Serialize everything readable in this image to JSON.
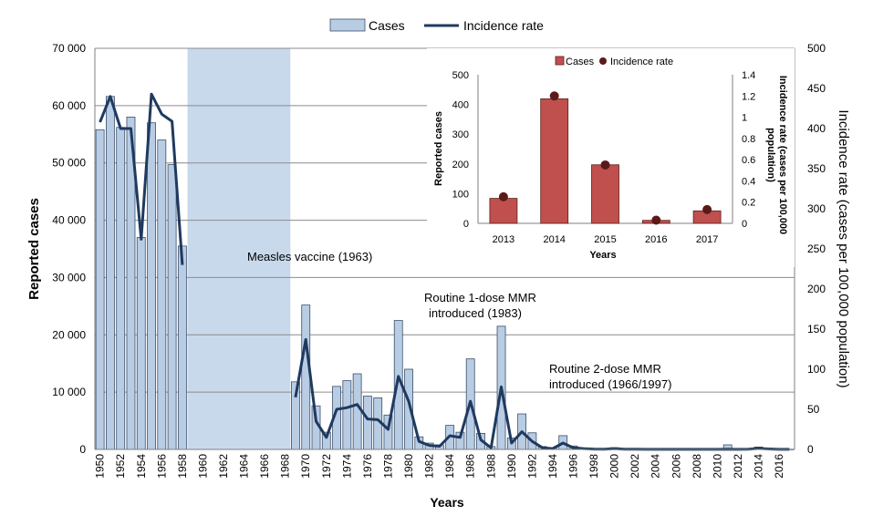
{
  "chart_data": [
    {
      "type": "bar+line",
      "title": "",
      "legend": {
        "position": "top-center",
        "items": [
          "Cases",
          "Incidence rate"
        ]
      },
      "xlabel": "Years",
      "ylabel": "Reported cases",
      "y2label": "Incidence rate (cases per 100,000 population)",
      "ylim": [
        0,
        70000
      ],
      "y2lim": [
        0,
        500
      ],
      "yticks": [
        "0",
        "10 000",
        "20 000",
        "30 000",
        "40 000",
        "50 000",
        "60 000",
        "70 000"
      ],
      "y2ticks": [
        "0",
        "50",
        "100",
        "150",
        "200",
        "250",
        "300",
        "350",
        "400",
        "450",
        "500"
      ],
      "xtick_labels": [
        "1950",
        "1952",
        "1954",
        "1956",
        "1958",
        "1960",
        "1962",
        "1964",
        "1966",
        "1968",
        "1970",
        "1972",
        "1974",
        "1976",
        "1978",
        "1980",
        "1982",
        "1984",
        "1986",
        "1988",
        "1990",
        "1992",
        "1994",
        "1996",
        "1998",
        "2000",
        "2002",
        "2004",
        "2006",
        "2008",
        "2010",
        "2012",
        "2014",
        "2016"
      ],
      "shaded_range": [
        1959,
        1969
      ],
      "annotations": [
        "Measles vaccine (1963)",
        "Routine 1-dose MMR",
        "introduced (1983)",
        "Routine 2-dose MMR",
        "introduced (1966/1997)"
      ],
      "years": [
        1950,
        1951,
        1952,
        1953,
        1954,
        1955,
        1956,
        1957,
        1958,
        1969,
        1970,
        1971,
        1972,
        1973,
        1974,
        1975,
        1976,
        1977,
        1978,
        1979,
        1980,
        1981,
        1982,
        1983,
        1984,
        1985,
        1986,
        1987,
        1988,
        1989,
        1990,
        1991,
        1992,
        1993,
        1994,
        1995,
        1996,
        1997,
        1998,
        1999,
        2000,
        2001,
        2002,
        2003,
        2004,
        2005,
        2006,
        2007,
        2008,
        2009,
        2010,
        2011,
        2012,
        2013,
        2014,
        2015,
        2016,
        2017
      ],
      "series": [
        {
          "name": "Cases",
          "axis": "left",
          "values": [
            55800,
            61600,
            56200,
            58000,
            37000,
            57000,
            54000,
            49700,
            35500,
            11800,
            25200,
            7600,
            3000,
            11000,
            12000,
            13200,
            9300,
            9000,
            6000,
            22500,
            14000,
            2200,
            1100,
            800,
            4200,
            3000,
            15800,
            2800,
            500,
            21500,
            2000,
            6200,
            2900,
            500,
            300,
            2400,
            600,
            200,
            100,
            50,
            300,
            100,
            50,
            30,
            20,
            30,
            10,
            10,
            20,
            30,
            40,
            800,
            50,
            80,
            420,
            200,
            10,
            40
          ]
        },
        {
          "name": "Incidence rate",
          "axis": "right",
          "values": [
            408,
            440,
            400,
            400,
            262,
            443,
            418,
            409,
            230,
            65,
            137,
            35,
            15,
            50,
            52,
            56,
            38,
            37,
            25,
            91,
            60,
            10,
            5,
            4,
            17,
            15,
            60,
            12,
            2,
            78,
            8,
            22,
            10,
            2,
            1,
            8,
            2,
            1,
            0.5,
            0.2,
            1,
            0.3,
            0.2,
            0.1,
            0.1,
            0.1,
            0.1,
            0.1,
            0.1,
            0.1,
            0.1,
            0.3,
            0.1,
            0.2,
            1.2,
            0.6,
            0.1,
            0.1
          ]
        }
      ]
    },
    {
      "type": "bar+scatter",
      "title": "",
      "legend": {
        "position": "top",
        "items": [
          "Cases",
          "Incidence rate"
        ]
      },
      "xlabel": "Years",
      "ylabel": "Reported cases",
      "y2label": [
        "Incidence rate (cases per 100,000",
        "population)"
      ],
      "ylim": [
        0,
        500
      ],
      "y2lim": [
        0,
        1.4
      ],
      "yticks": [
        "0",
        "100",
        "200",
        "300",
        "400",
        "500"
      ],
      "y2ticks": [
        "0",
        "0.2",
        "0.4",
        "0.6",
        "0.8",
        "1",
        "1.2",
        "1.4"
      ],
      "categories": [
        "2013",
        "2014",
        "2015",
        "2016",
        "2017"
      ],
      "series": [
        {
          "name": "Cases",
          "axis": "left",
          "values": [
            84,
            419,
            197,
            10,
            42
          ]
        },
        {
          "name": "Incidence rate",
          "axis": "right",
          "values": [
            0.25,
            1.2,
            0.55,
            0.03,
            0.13
          ]
        }
      ]
    }
  ],
  "colors": {
    "main_bar_fill": "#b8cce4",
    "main_bar_stroke": "#3b4f6a",
    "main_line": "#1f3a5f",
    "shade": "#c9d9ec",
    "grid": "#8c8c8c",
    "inset_bar_fill": "#c0504d",
    "inset_bar_stroke": "#5a1e1c",
    "inset_dot": "#5b1a1a"
  }
}
